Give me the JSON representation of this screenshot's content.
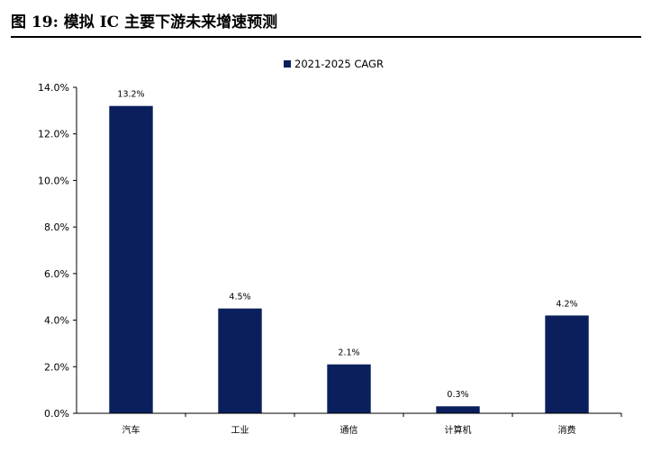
{
  "figure": {
    "title": "图 19: 模拟 IC 主要下游未来增速预测"
  },
  "colors": {
    "bar": "#0b1f5c",
    "axis": "#000000"
  },
  "chart_data": {
    "type": "bar",
    "categories": [
      "汽车",
      "工业",
      "通信",
      "计算机",
      "消费"
    ],
    "series": [
      {
        "name": "2021-2025 CAGR",
        "values": [
          13.2,
          4.5,
          2.1,
          0.3,
          4.2
        ]
      }
    ],
    "data_labels": [
      "13.2%",
      "4.5%",
      "2.1%",
      "0.3%",
      "4.2%"
    ],
    "y_ticks": [
      "0.0%",
      "2.0%",
      "4.0%",
      "6.0%",
      "8.0%",
      "10.0%",
      "12.0%",
      "14.0%"
    ],
    "ylim": [
      0,
      14
    ],
    "y_step": 2,
    "legend_position": "top-center",
    "grid": false
  }
}
